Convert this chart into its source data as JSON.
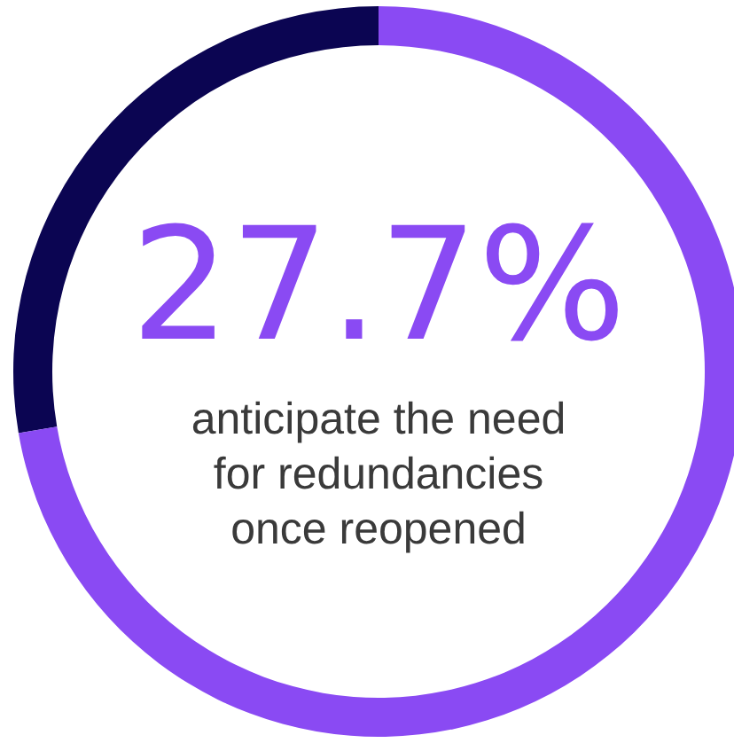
{
  "chart_data": {
    "type": "donut",
    "categories": [
      null,
      null
    ],
    "values": [
      27.7,
      72.3
    ],
    "colors": [
      "#0b0552",
      "#8a4af3"
    ],
    "annotations": [
      "27.7%",
      "anticipate the need\nfor redundancies\nonce reopened"
    ]
  }
}
